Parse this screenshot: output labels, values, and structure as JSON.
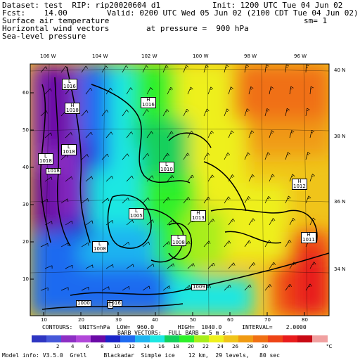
{
  "header": {
    "line1_left": "Dataset: test  RIP: rip20020604 d1",
    "line1_right": "Init: 1200 UTC Tue 04 Jun 02",
    "line2_left": "Fcst:    14.00",
    "line2_right": "Valid: 0200 UTC Wed 05 Jun 02 (2100 CDT Tue 04 Jun 02)",
    "field1": "Surface air temperature",
    "field2": "Horizontal wind vectors",
    "field3": "Sea-level pressure",
    "smoothing": "sm= 1",
    "pressure_level": "at pressure =  900 hPa"
  },
  "map": {
    "lon_labels": [
      "106 W",
      "104 W",
      "102 W",
      "100 W",
      "98 W",
      "96 W"
    ],
    "lat_labels": [
      "40 N",
      "38 N",
      "36 N",
      "34 N"
    ],
    "x_ticks": [
      "10",
      "20",
      "30",
      "40",
      "50",
      "60",
      "70",
      "80"
    ],
    "y_ticks": [
      "10",
      "20",
      "30",
      "40",
      "50",
      "60"
    ],
    "pressure_labels": [
      {
        "sym": "L",
        "val": "1016"
      },
      {
        "sym": "H",
        "val": "1018"
      },
      {
        "sym": "H",
        "val": "1016"
      },
      {
        "sym": "L",
        "val": "1018"
      },
      {
        "sym": "L",
        "val": "1018"
      },
      {
        "sym": "L",
        "val": "1010"
      },
      {
        "sym": "L",
        "val": "1005"
      },
      {
        "sym": "H",
        "val": "1013"
      },
      {
        "sym": "H",
        "val": "1012"
      },
      {
        "sym": "L",
        "val": "1008"
      },
      {
        "sym": "L",
        "val": "1008"
      },
      {
        "sym": "H",
        "val": "1011"
      },
      {
        "sym": "",
        "val": "1009"
      },
      {
        "sym": "",
        "val": "1000"
      },
      {
        "sym": "",
        "val": "1016"
      },
      {
        "sym": "",
        "val": "1018"
      },
      {
        "sym": "L",
        "val": ""
      }
    ]
  },
  "footer": {
    "contours": "CONTOURS:  UNITS=hPa  LOW=  960.0       HIGH=  1040.0      INTERVAL=    2.0000",
    "barbs": "BARB VECTORS:  FULL BARB = 5 m s⁻¹",
    "model_info": "Model info: V3.5.0  Grell     Blackadar  Simple ice    12 km,  29 levels,   80 sec"
  },
  "colorbar": {
    "unit": "°C",
    "labels": [
      "2",
      "4",
      "6",
      "8",
      "10",
      "12",
      "14",
      "16",
      "18",
      "20",
      "22",
      "24",
      "26",
      "28",
      "30"
    ],
    "colors": [
      "#2e36c2",
      "#4658d9",
      "#8d2fc4",
      "#b147d9",
      "#6a0aa6",
      "#1a24c8",
      "#1e6af0",
      "#1fb4f0",
      "#1de7e2",
      "#12d05c",
      "#2ef02a",
      "#a8ee1a",
      "#eef01c",
      "#f0c41a",
      "#f09a12",
      "#f07014",
      "#ee4416",
      "#e81c1c",
      "#c80a14",
      "#f0a0a0"
    ]
  }
}
